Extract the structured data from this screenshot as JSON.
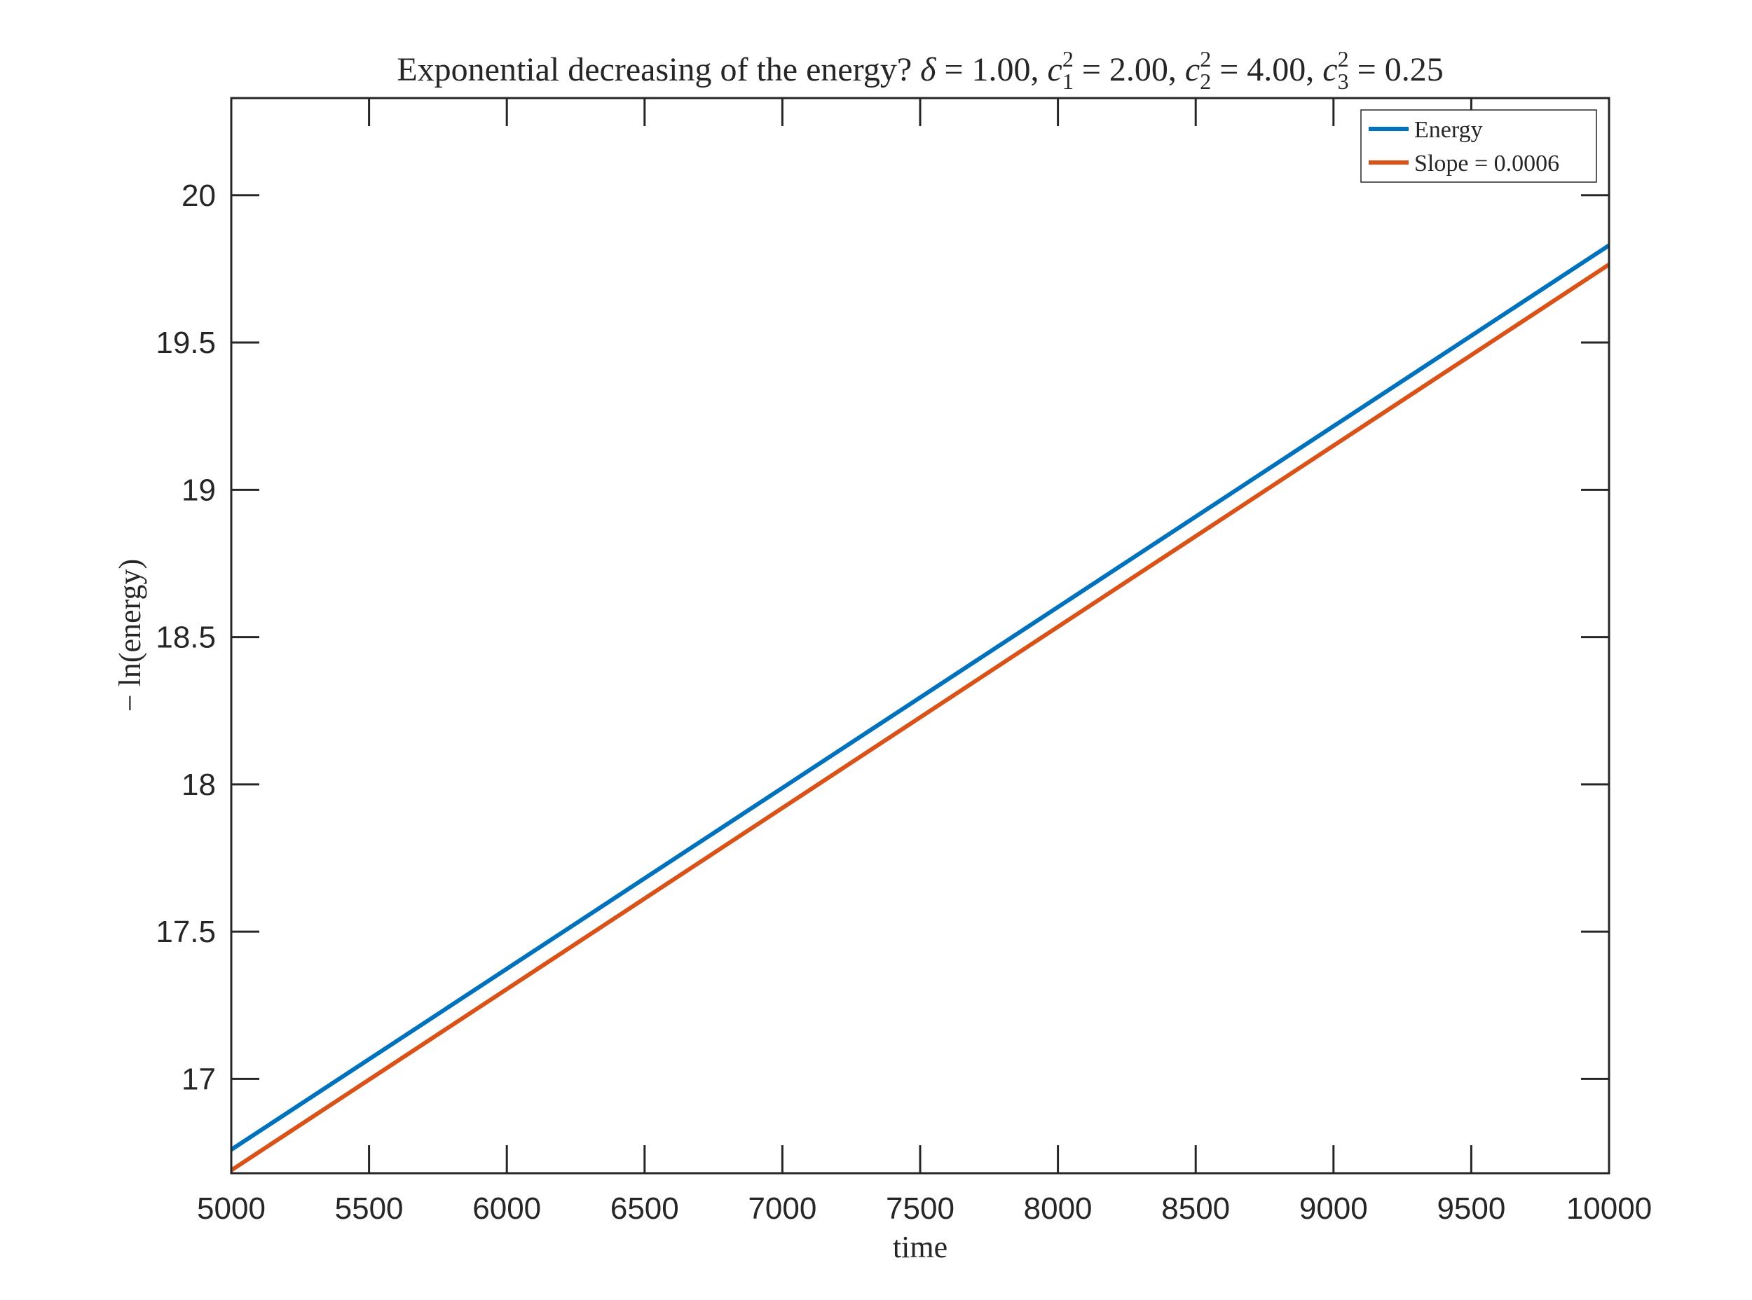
{
  "chart_data": {
    "type": "line",
    "title": {
      "prefix": "Exponential decreasing of the energy? ",
      "delta": "1.00",
      "c1sq": "2.00",
      "c2sq": "4.00",
      "c3sq": "0.25"
    },
    "xlabel": "time",
    "ylabel": "− ln(energy)",
    "xlim": [
      5000,
      10000
    ],
    "ylim": [
      16.68,
      20.33
    ],
    "xticks": [
      "5000",
      "5500",
      "6000",
      "6500",
      "7000",
      "7500",
      "8000",
      "8500",
      "9000",
      "9500",
      "10000"
    ],
    "yticks": [
      "17",
      "17.5",
      "18",
      "18.5",
      "19",
      "19.5",
      "20"
    ],
    "grid": false,
    "legend_position": "top-right",
    "series": [
      {
        "name": "Energy",
        "color": "#0072BD",
        "x": [
          5000,
          10000
        ],
        "y": [
          16.76,
          19.83
        ]
      },
      {
        "name": "Slope = 0.0006",
        "color": "#D95319",
        "x": [
          5000,
          10000
        ],
        "y": [
          16.69,
          19.765
        ]
      }
    ]
  }
}
